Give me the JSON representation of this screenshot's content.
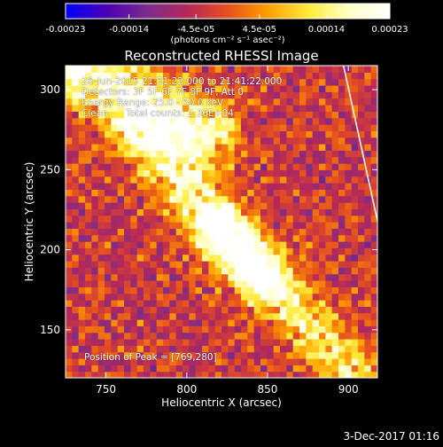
{
  "colorbar": {
    "ticks": [
      {
        "label": "-0.00023",
        "value": -0.00023
      },
      {
        "label": "-0.00014",
        "value": -0.00014
      },
      {
        "label": "-4.5e-05",
        "value": -4.5e-05
      },
      {
        "label": "4.5e-05",
        "value": 4.5e-05
      },
      {
        "label": "0.00014",
        "value": 0.00014
      },
      {
        "label": "0.00023",
        "value": 0.00023
      }
    ],
    "unit_label": "(photons cm⁻² s⁻¹ asec⁻²)",
    "range": [
      -0.00023,
      0.00023
    ],
    "colors": [
      "#0000ff",
      "#4a00b4",
      "#7a2d8c",
      "#b4285a",
      "#e6501e",
      "#ffa000",
      "#ffeb3c",
      "#ffffc8",
      "#ffffff"
    ]
  },
  "chart_data": {
    "type": "heatmap",
    "title": "Reconstructed RHESSI Image",
    "xlabel": "Heliocentric X (arcsec)",
    "ylabel": "Heliocentric Y (arcsec)",
    "xlim": [
      725,
      918
    ],
    "ylim": [
      120,
      315
    ],
    "xticks": [
      750,
      800,
      850,
      900
    ],
    "yticks": [
      150,
      200,
      250,
      300
    ],
    "grid": false,
    "info_lines": [
      "26-Jun-2015 21:31:22.000 to 21:41:22.000",
      "Detectors: 3F 5F 6F 7F 8F 9F, Att 0",
      "Energy Range: 25.0 - 50.0 keV",
      "Clean      Total counts: 2.36E+04"
    ],
    "peak_label": "Position of Peak = [769,280]",
    "peak": [
      769,
      280
    ],
    "limb_points": [
      [
        897,
        315
      ],
      [
        918,
        218
      ]
    ],
    "image_grid": {
      "nx": 48,
      "ny": 48
    },
    "emission_ridges": [
      {
        "x": [
          725,
          810
        ],
        "y": [
          315,
          275
        ],
        "peak": 0.00023,
        "width": 14
      },
      {
        "x": [
          770,
          845
        ],
        "y": [
          275,
          185
        ],
        "peak": 0.00019,
        "width": 12
      },
      {
        "x": [
          820,
          905
        ],
        "y": [
          215,
          120
        ],
        "peak": 0.00017,
        "width": 11
      }
    ]
  },
  "footer": {
    "date": "3-Dec-2017 01:16"
  }
}
